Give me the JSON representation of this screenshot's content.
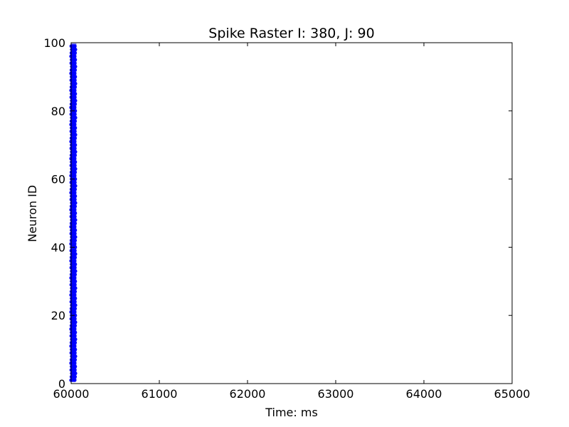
{
  "chart_data": {
    "type": "scatter",
    "title": "Spike Raster I: 380, J: 90",
    "xlabel": "Time: ms",
    "ylabel": "Neuron ID",
    "xlim": [
      60000,
      65000
    ],
    "ylim": [
      0,
      100
    ],
    "xticks": [
      60000,
      61000,
      62000,
      63000,
      64000,
      65000
    ],
    "yticks": [
      0,
      20,
      40,
      60,
      80,
      100
    ],
    "grid": false,
    "marker_color": "#0000ff",
    "series": [
      {
        "x_range": [
          60000,
          60060
        ],
        "neuron_ids": [
          1,
          2,
          3,
          4,
          5,
          6,
          7,
          8,
          9,
          10,
          11,
          12,
          13,
          14,
          15,
          16,
          17,
          18,
          19,
          20,
          21,
          22,
          23,
          24,
          25,
          26,
          27,
          28,
          29,
          30,
          31,
          32,
          33,
          34,
          35,
          36,
          37,
          38,
          39,
          40,
          41,
          42,
          43,
          44,
          45,
          46,
          47,
          48,
          49,
          50,
          51,
          52,
          53,
          54,
          55,
          56,
          57,
          58,
          59,
          60,
          61,
          62,
          63,
          64,
          65,
          66,
          67,
          68,
          69,
          70,
          71,
          72,
          73,
          74,
          75,
          76,
          77,
          78,
          79,
          80,
          81,
          82,
          83,
          84,
          85,
          86,
          87,
          88,
          89,
          90,
          91,
          92,
          93,
          94,
          95,
          96,
          97,
          98,
          99
        ]
      }
    ]
  }
}
